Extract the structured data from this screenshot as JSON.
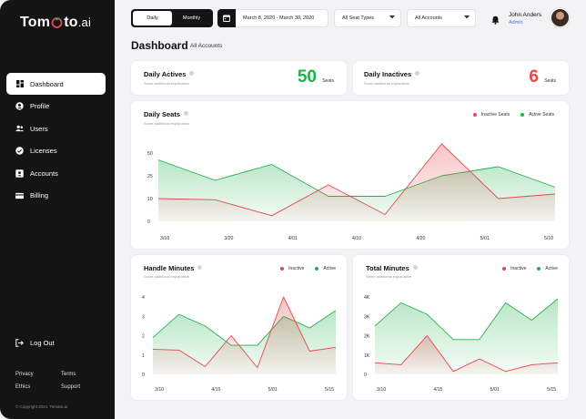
{
  "sidebar": {
    "logo": {
      "pre": "Tom",
      "post": "to",
      "suffix": ".ai"
    },
    "items": [
      {
        "label": "Dashboard",
        "icon": "dashboard-icon"
      },
      {
        "label": "Profile",
        "icon": "user-circle-icon"
      },
      {
        "label": "Users",
        "icon": "users-icon"
      },
      {
        "label": "Licenses",
        "icon": "license-check-icon"
      },
      {
        "label": "Accounts",
        "icon": "account-card-icon"
      },
      {
        "label": "Billing",
        "icon": "credit-card-icon"
      }
    ],
    "logout": "Log Out",
    "links": [
      "Privacy",
      "Terms",
      "Ethics",
      "Support"
    ],
    "copyright": "© Copyright 2024, Tomato.ai"
  },
  "topbar": {
    "period_tabs": [
      "Daily",
      "Monthly"
    ],
    "active_period": "Daily",
    "date_range": "March 8, 2020 - March 30, 2020",
    "seat_types": "All Seat Types",
    "accounts": "All Accounts",
    "user_name": "John Anders",
    "user_role": "Admin"
  },
  "page": {
    "title": "Dashboard",
    "subtitle": "All Accounts"
  },
  "colors": {
    "active": "#22b14c",
    "inactive": "#e5484d",
    "dark": "#141414"
  },
  "stats": [
    {
      "title": "Daily Actives",
      "sub": "Some additional explanation",
      "value": "50",
      "unit": "Seats",
      "color": "#22b14c"
    },
    {
      "title": "Daily Inactives",
      "sub": "Some additional explanation",
      "value": "6",
      "unit": "Seats",
      "color": "#e5484d"
    }
  ],
  "chart_data": [
    {
      "type": "area",
      "title": "Daily Seats",
      "sub": "Some additional explanation",
      "x_ticks": [
        "3/10",
        "3/20",
        "4/01",
        "4/10",
        "4/20",
        "5/01",
        "5/10"
      ],
      "y_ticks": [
        "0",
        "10",
        "25",
        "50"
      ],
      "series": [
        {
          "name": "Inactive Seats",
          "values": [
            10,
            9.5,
            2.5,
            16,
            3,
            34,
            10,
            12
          ]
        },
        {
          "name": "Active Seats",
          "values": [
            27,
            18,
            25,
            11,
            11,
            20,
            24,
            15
          ]
        }
      ]
    },
    {
      "type": "area",
      "title": "Handle Minutes",
      "sub": "Some additional explanation",
      "x_ticks": [
        "3/10",
        "4/15",
        "5/01",
        "5/15"
      ],
      "y_ticks": [
        "0",
        "1",
        "2",
        "3",
        "4"
      ],
      "series": [
        {
          "name": "Inactive",
          "values": [
            1.3,
            1.25,
            0.4,
            2,
            0.35,
            4,
            1.2,
            1.4
          ]
        },
        {
          "name": "Active",
          "values": [
            1.9,
            3.1,
            2.5,
            1.5,
            1.5,
            3,
            2.4,
            3.3
          ]
        }
      ]
    },
    {
      "type": "area",
      "title": "Total Minutes",
      "sub": "Some additional explanation",
      "x_ticks": [
        "3/10",
        "4/15",
        "5/01",
        "5/15"
      ],
      "y_ticks": [
        "0",
        "1K",
        "2K",
        "3K",
        "4K"
      ],
      "series": [
        {
          "name": "Inactive",
          "values": [
            600,
            500,
            2000,
            150,
            800,
            150,
            500,
            600
          ]
        },
        {
          "name": "Active",
          "values": [
            2500,
            3700,
            3100,
            1800,
            1800,
            3700,
            2800,
            3900
          ]
        }
      ]
    }
  ]
}
